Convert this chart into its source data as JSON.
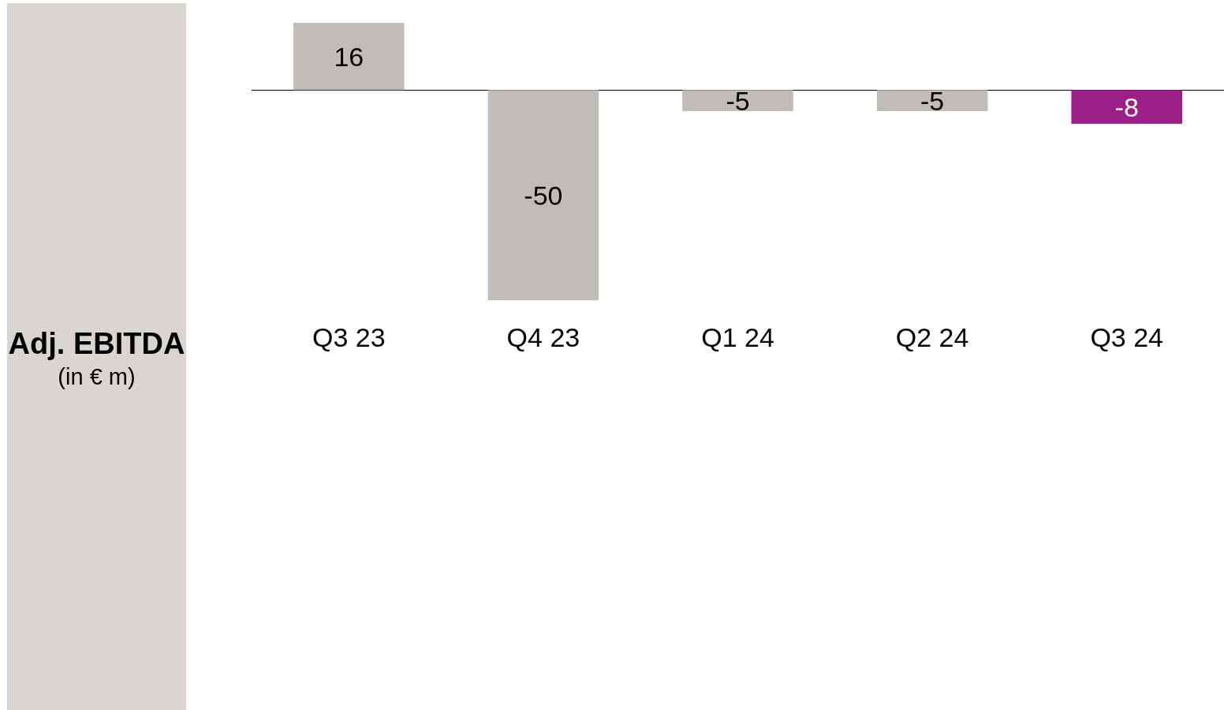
{
  "chart_data": {
    "type": "bar",
    "ylabel": "Adj. EBITDA",
    "annotations": [
      "(in € m)"
    ],
    "categories": [
      "Q3 23",
      "Q4 23",
      "Q1 24",
      "Q2 24",
      "Q3 24"
    ],
    "values": [
      16,
      -50,
      -5,
      -5,
      -8
    ],
    "colors": [
      "#c0bdb8",
      "#c0bdb8",
      "#c0bdb8",
      "#c0bdb8",
      "#9b1f86"
    ],
    "data_labels": true,
    "grid": false
  }
}
